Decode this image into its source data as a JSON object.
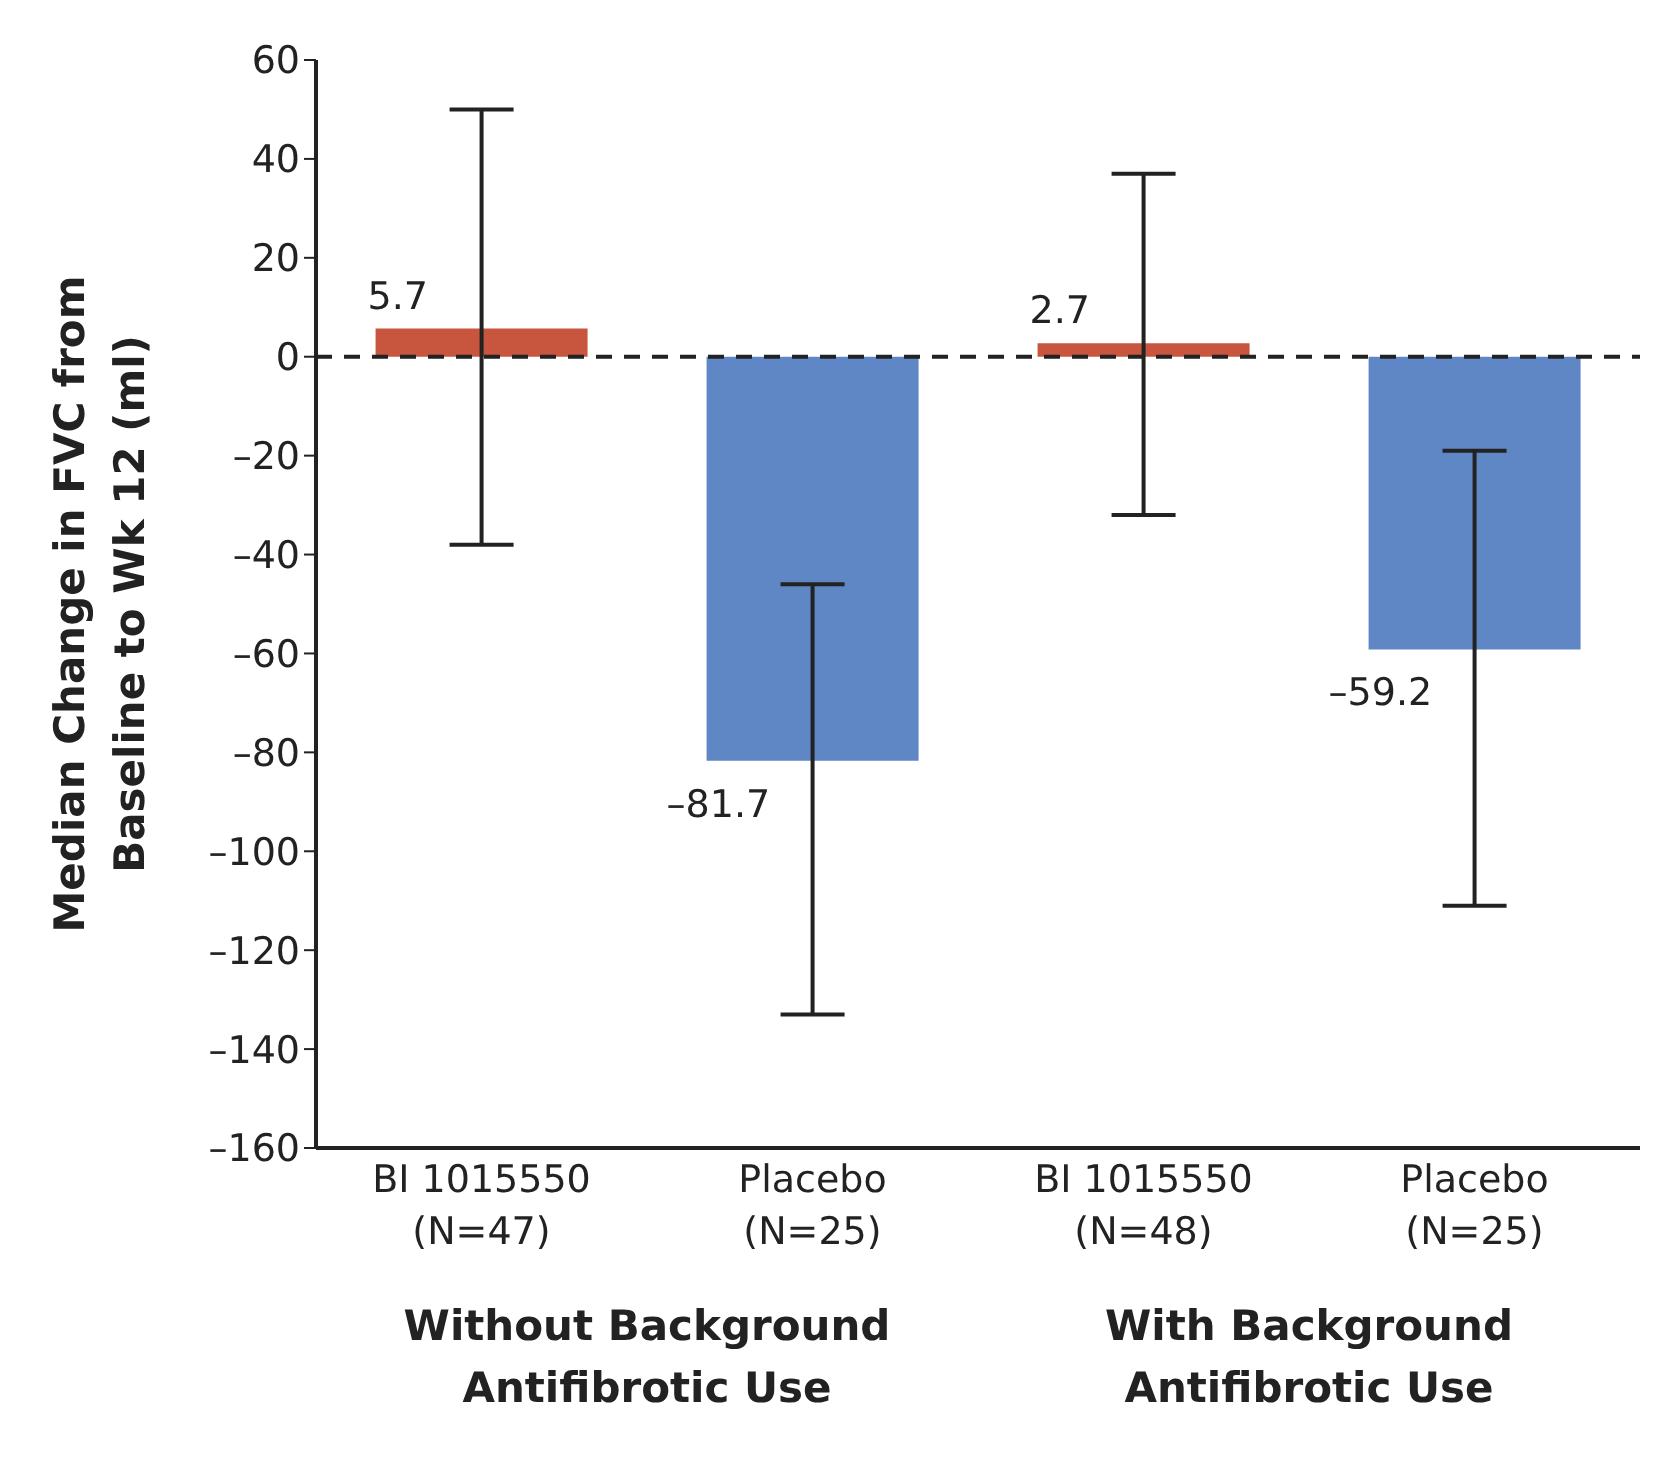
{
  "chart_data": {
    "type": "bar",
    "ylabel": "Median Change in FVC from Baseline to Wk 12 (ml)",
    "categories": [
      "BI 1015550 (N=47)",
      "Placebo (N=25)",
      "BI 1015550 (N=48)",
      "Placebo (N=25)"
    ],
    "values": [
      5.7,
      -81.7,
      2.7,
      -59.2
    ],
    "value_labels": [
      "5.7",
      "–81.7",
      "2.7",
      "–59.2"
    ],
    "colors": [
      "#c8553d",
      "#5f86c5",
      "#c8553d",
      "#5f86c5"
    ],
    "errors": [
      [
        -38,
        50
      ],
      [
        -46,
        -133
      ],
      [
        -32,
        37
      ],
      [
        -19,
        -111
      ]
    ],
    "ylim": [
      -160,
      60
    ],
    "yticks": [
      {
        "value": -160,
        "label": "–160"
      },
      {
        "value": -140,
        "label": "–140"
      },
      {
        "value": -120,
        "label": "–120"
      },
      {
        "value": -100,
        "label": "–100"
      },
      {
        "value": -80,
        "label": "–80"
      },
      {
        "value": -60,
        "label": "–60"
      },
      {
        "value": -40,
        "label": "–40"
      },
      {
        "value": -20,
        "label": "–20"
      },
      0,
      20,
      40,
      60
    ],
    "ref_lines": [
      {
        "axis": "y",
        "value": 0,
        "color": "#222222",
        "line_style": "dashed"
      }
    ],
    "annotations": [
      "Without Background Antifibrotic Use",
      "With Background Antifibrotic Use"
    ],
    "grid": false,
    "legend": false
  }
}
